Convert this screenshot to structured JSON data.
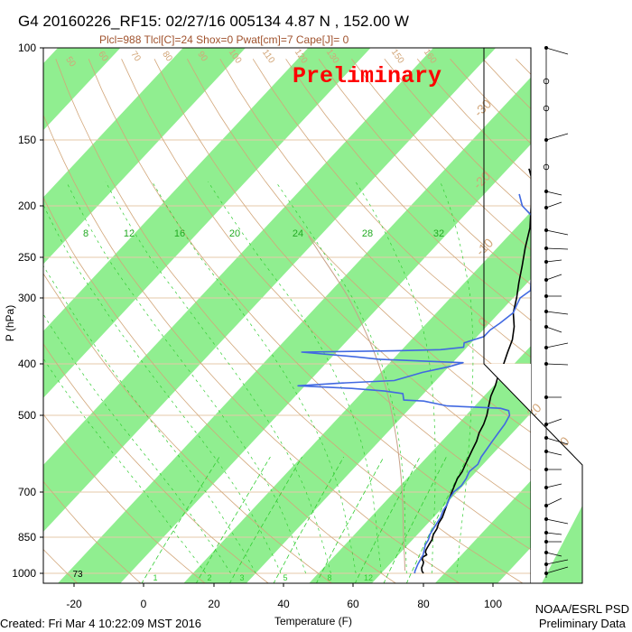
{
  "header": {
    "title": "G4 20160226_RF15: 02/27/16 005134   4.87 N , 152.00 W",
    "subtitle": "Plcl=988 Tlcl[C]=24 Shox=0 Pwat[cm]=7 Cape[J]= 0",
    "watermark": "Preliminary"
  },
  "footer": {
    "created": "Created: Fri Mar  4 10:22:09 MST 2016",
    "org_line1": "NOAA/ESRL PSD",
    "org_line2": "Preliminary Data"
  },
  "chart_data": {
    "type": "line",
    "xlabel": "Temperature (F)",
    "ylabel": "P (hPa)",
    "y_log_scale": true,
    "y_inverted": true,
    "xlim": [
      -28,
      118
    ],
    "ylim": [
      1040,
      100
    ],
    "x_ticks": [
      "-20",
      "0",
      "20",
      "40",
      "60",
      "80",
      "100"
    ],
    "y_ticks": [
      "100",
      "150",
      "200",
      "250",
      "300",
      "400",
      "500",
      "700",
      "850",
      "1000"
    ],
    "surface_label": "73",
    "mixing_ratio_labels": [
      "1",
      "2",
      "3",
      "5",
      "8",
      "12"
    ],
    "dry_adiabat_labels": [
      "50",
      "60",
      "70",
      "80",
      "90",
      "100",
      "110",
      "120",
      "130",
      "150",
      "160"
    ],
    "wet_bulb_labels": [
      "8",
      "12",
      "16",
      "20",
      "24",
      "28",
      "32"
    ],
    "celsius_labels": [
      "-30",
      "-20",
      "-10",
      "0",
      "10",
      "20",
      "30"
    ],
    "colors": {
      "temperature": "#000000",
      "dewpoint": "#4169e1",
      "isotherm_band": "#90ee90",
      "dry_adiabat": "#d2a679",
      "isobar": "#e6c8a8",
      "moist_adiabat": "#32cd32",
      "mixing_ratio": "#32cd32",
      "parcel": "#c8a088"
    },
    "series": [
      {
        "key": "temperature",
        "points": [
          [
            80,
            1000
          ],
          [
            79,
            990
          ],
          [
            78,
            975
          ],
          [
            77.5,
            960
          ],
          [
            77,
            950
          ],
          [
            76,
            940
          ],
          [
            75.5,
            930
          ],
          [
            76,
            920
          ],
          [
            75,
            910
          ],
          [
            74.5,
            900
          ],
          [
            74,
            880
          ],
          [
            73.5,
            860
          ],
          [
            72.5,
            840
          ],
          [
            72,
            820
          ],
          [
            71,
            800
          ],
          [
            70.5,
            780
          ],
          [
            69.5,
            760
          ],
          [
            68.5,
            740
          ],
          [
            67.5,
            720
          ],
          [
            66.5,
            700
          ],
          [
            65.5,
            680
          ],
          [
            64.5,
            660
          ],
          [
            64,
            640
          ],
          [
            63,
            620
          ],
          [
            62,
            600
          ],
          [
            61,
            580
          ],
          [
            60,
            560
          ],
          [
            58.5,
            540
          ],
          [
            57.5,
            520
          ],
          [
            56,
            500
          ],
          [
            54,
            480
          ],
          [
            52,
            460
          ],
          [
            50.5,
            440
          ],
          [
            48.5,
            420
          ],
          [
            47,
            400
          ],
          [
            45,
            380
          ],
          [
            43,
            360
          ],
          [
            40,
            340
          ],
          [
            36,
            320
          ],
          [
            33,
            300
          ],
          [
            29.5,
            280
          ],
          [
            26,
            260
          ],
          [
            22,
            240
          ],
          [
            18,
            220
          ],
          [
            12.5,
            200
          ],
          [
            6.5,
            180
          ],
          [
            2,
            170
          ]
        ]
      },
      {
        "key": "dewpoint",
        "points": [
          [
            77.5,
            1000
          ],
          [
            77,
            990
          ],
          [
            76.5,
            975
          ],
          [
            76,
            960
          ],
          [
            75.5,
            940
          ],
          [
            75,
            920
          ],
          [
            74,
            900
          ],
          [
            73,
            880
          ],
          [
            72.5,
            860
          ],
          [
            71.5,
            840
          ],
          [
            71,
            820
          ],
          [
            70.5,
            800
          ],
          [
            70,
            780
          ],
          [
            69,
            760
          ],
          [
            68.5,
            740
          ],
          [
            67.5,
            720
          ],
          [
            67,
            700
          ],
          [
            67.5,
            680
          ],
          [
            67,
            660
          ],
          [
            66,
            640
          ],
          [
            66.5,
            620
          ],
          [
            65.5,
            600
          ],
          [
            65,
            580
          ],
          [
            64.5,
            560
          ],
          [
            64,
            540
          ],
          [
            63.5,
            520
          ],
          [
            62.5,
            500
          ],
          [
            61,
            490
          ],
          [
            58,
            485
          ],
          [
            42,
            480
          ],
          [
            38,
            475
          ],
          [
            34,
            470
          ],
          [
            28,
            468
          ],
          [
            26,
            455
          ],
          [
            20,
            450
          ],
          [
            10,
            445
          ],
          [
            -6,
            440
          ],
          [
            5,
            435
          ],
          [
            20,
            430
          ],
          [
            22,
            425
          ],
          [
            26,
            415
          ],
          [
            32,
            405
          ],
          [
            35,
            398
          ],
          [
            10,
            392
          ],
          [
            3,
            388
          ],
          [
            -14,
            380
          ],
          [
            12,
            378
          ],
          [
            25,
            376
          ],
          [
            31,
            372
          ],
          [
            30,
            365
          ],
          [
            34,
            355
          ],
          [
            34,
            345
          ],
          [
            35,
            335
          ],
          [
            36,
            320
          ],
          [
            35,
            310
          ],
          [
            34,
            300
          ],
          [
            35,
            290
          ],
          [
            33,
            280
          ],
          [
            31,
            270
          ],
          [
            30,
            260
          ],
          [
            28,
            250
          ],
          [
            26,
            240
          ],
          [
            22,
            225
          ],
          [
            16,
            210
          ],
          [
            10,
            200
          ],
          [
            6,
            190
          ]
        ]
      }
    ]
  }
}
